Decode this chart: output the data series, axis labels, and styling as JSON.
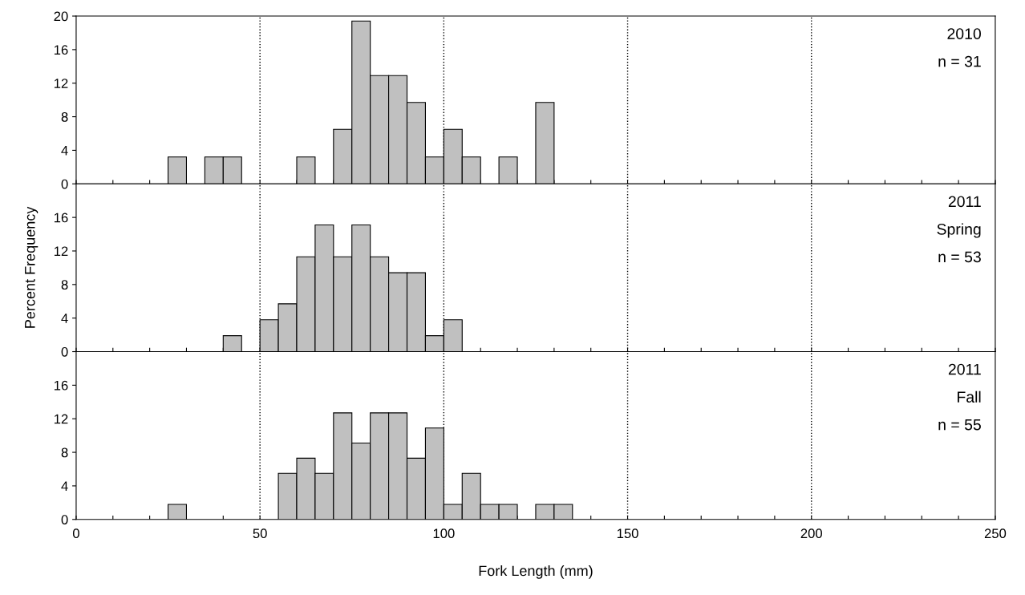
{
  "chart_data": [
    {
      "type": "histogram",
      "bins": [
        25,
        30,
        35,
        40,
        45,
        50,
        55,
        60,
        65,
        70,
        75,
        80,
        85,
        90,
        95,
        100,
        105,
        110,
        115,
        120,
        125,
        130
      ],
      "values": [
        3.2,
        0,
        3.2,
        3.2,
        0,
        0,
        0,
        3.2,
        0,
        6.5,
        19.4,
        12.9,
        12.9,
        9.7,
        3.2,
        6.5,
        3.2,
        0,
        3.2,
        0,
        9.7
      ],
      "color": "#c0c0c0",
      "xlim": [
        0,
        250
      ],
      "xticks": [
        0,
        {
          "value": 10,
          "label": null
        },
        {
          "value": 20,
          "label": null
        },
        {
          "value": 30,
          "label": null
        },
        {
          "value": 40,
          "label": null
        },
        50,
        {
          "value": 60,
          "label": null
        },
        {
          "value": 70,
          "label": null
        },
        {
          "value": 80,
          "label": null
        },
        {
          "value": 90,
          "label": null
        },
        100,
        {
          "value": 110,
          "label": null
        },
        {
          "value": 120,
          "label": null
        },
        {
          "value": 130,
          "label": null
        },
        {
          "value": 140,
          "label": null
        },
        150,
        {
          "value": 160,
          "label": null
        },
        {
          "value": 170,
          "label": null
        },
        {
          "value": 180,
          "label": null
        },
        {
          "value": 190,
          "label": null
        },
        200,
        {
          "value": 210,
          "label": null
        },
        {
          "value": 220,
          "label": null
        },
        {
          "value": 230,
          "label": null
        },
        {
          "value": 240,
          "label": null
        },
        250
      ],
      "ylim": [
        0,
        20
      ],
      "yticks": [
        0,
        4,
        8,
        12,
        16,
        20
      ],
      "tick_labels": "y",
      "grid": false,
      "ref_lines": [
        {
          "axis": "x",
          "value": 50,
          "line_style": "dotted"
        },
        {
          "axis": "x",
          "value": 100,
          "line_style": "dotted"
        },
        {
          "axis": "x",
          "value": 150,
          "line_style": "dotted"
        },
        {
          "axis": "x",
          "value": 200,
          "line_style": "dotted"
        }
      ],
      "annotations": [
        "2010",
        "n = 31"
      ]
    },
    {
      "type": "histogram",
      "bins": [
        40,
        45,
        50,
        55,
        60,
        65,
        70,
        75,
        80,
        85,
        90,
        95,
        100,
        105
      ],
      "values": [
        1.9,
        0,
        3.8,
        5.7,
        11.3,
        15.1,
        11.3,
        15.1,
        11.3,
        9.4,
        9.4,
        1.9,
        3.8
      ],
      "color": "#c0c0c0",
      "xlim": [
        0,
        250
      ],
      "xticks": [
        0,
        {
          "value": 10,
          "label": null
        },
        {
          "value": 20,
          "label": null
        },
        {
          "value": 30,
          "label": null
        },
        {
          "value": 40,
          "label": null
        },
        50,
        {
          "value": 60,
          "label": null
        },
        {
          "value": 70,
          "label": null
        },
        {
          "value": 80,
          "label": null
        },
        {
          "value": 90,
          "label": null
        },
        100,
        {
          "value": 110,
          "label": null
        },
        {
          "value": 120,
          "label": null
        },
        {
          "value": 130,
          "label": null
        },
        {
          "value": 140,
          "label": null
        },
        150,
        {
          "value": 160,
          "label": null
        },
        {
          "value": 170,
          "label": null
        },
        {
          "value": 180,
          "label": null
        },
        {
          "value": 190,
          "label": null
        },
        200,
        {
          "value": 210,
          "label": null
        },
        {
          "value": 220,
          "label": null
        },
        {
          "value": 230,
          "label": null
        },
        {
          "value": 240,
          "label": null
        },
        250
      ],
      "ylim": [
        0,
        20
      ],
      "yticks": [
        0,
        4,
        8,
        12,
        16
      ],
      "tick_labels": "y",
      "grid": false,
      "ylabel": "Percent Frequency",
      "ref_lines": [
        {
          "axis": "x",
          "value": 50,
          "line_style": "dotted"
        },
        {
          "axis": "x",
          "value": 100,
          "line_style": "dotted"
        },
        {
          "axis": "x",
          "value": 150,
          "line_style": "dotted"
        },
        {
          "axis": "x",
          "value": 200,
          "line_style": "dotted"
        }
      ],
      "annotations": [
        "2011",
        "Spring",
        "n = 53"
      ]
    },
    {
      "type": "histogram",
      "bins": [
        25,
        30,
        35,
        40,
        45,
        50,
        55,
        60,
        65,
        70,
        75,
        80,
        85,
        90,
        95,
        100,
        105,
        110,
        115,
        120,
        125,
        130,
        135
      ],
      "values": [
        1.8,
        0,
        0,
        0,
        0,
        0,
        5.5,
        7.3,
        5.5,
        12.7,
        9.1,
        12.7,
        12.7,
        7.3,
        10.9,
        1.8,
        5.5,
        1.8,
        1.8,
        0,
        1.8,
        1.8
      ],
      "color": "#c0c0c0",
      "xlim": [
        0,
        250
      ],
      "xticks": [
        0,
        {
          "value": 10,
          "label": null
        },
        {
          "value": 20,
          "label": null
        },
        {
          "value": 30,
          "label": null
        },
        {
          "value": 40,
          "label": null
        },
        50,
        {
          "value": 60,
          "label": null
        },
        {
          "value": 70,
          "label": null
        },
        {
          "value": 80,
          "label": null
        },
        {
          "value": 90,
          "label": null
        },
        100,
        {
          "value": 110,
          "label": null
        },
        {
          "value": 120,
          "label": null
        },
        {
          "value": 130,
          "label": null
        },
        {
          "value": 140,
          "label": null
        },
        150,
        {
          "value": 160,
          "label": null
        },
        {
          "value": 170,
          "label": null
        },
        {
          "value": 180,
          "label": null
        },
        {
          "value": 190,
          "label": null
        },
        200,
        {
          "value": 210,
          "label": null
        },
        {
          "value": 220,
          "label": null
        },
        {
          "value": 230,
          "label": null
        },
        {
          "value": 240,
          "label": null
        },
        250
      ],
      "ylim": [
        0,
        20
      ],
      "yticks": [
        0,
        4,
        8,
        12,
        16
      ],
      "grid": false,
      "xlabel": "Fork Length (mm)",
      "ref_lines": [
        {
          "axis": "x",
          "value": 50,
          "line_style": "dotted"
        },
        {
          "axis": "x",
          "value": 100,
          "line_style": "dotted"
        },
        {
          "axis": "x",
          "value": 150,
          "line_style": "dotted"
        },
        {
          "axis": "x",
          "value": 200,
          "line_style": "dotted"
        }
      ],
      "annotations": [
        "2011",
        "Fall",
        "n = 55"
      ]
    }
  ]
}
